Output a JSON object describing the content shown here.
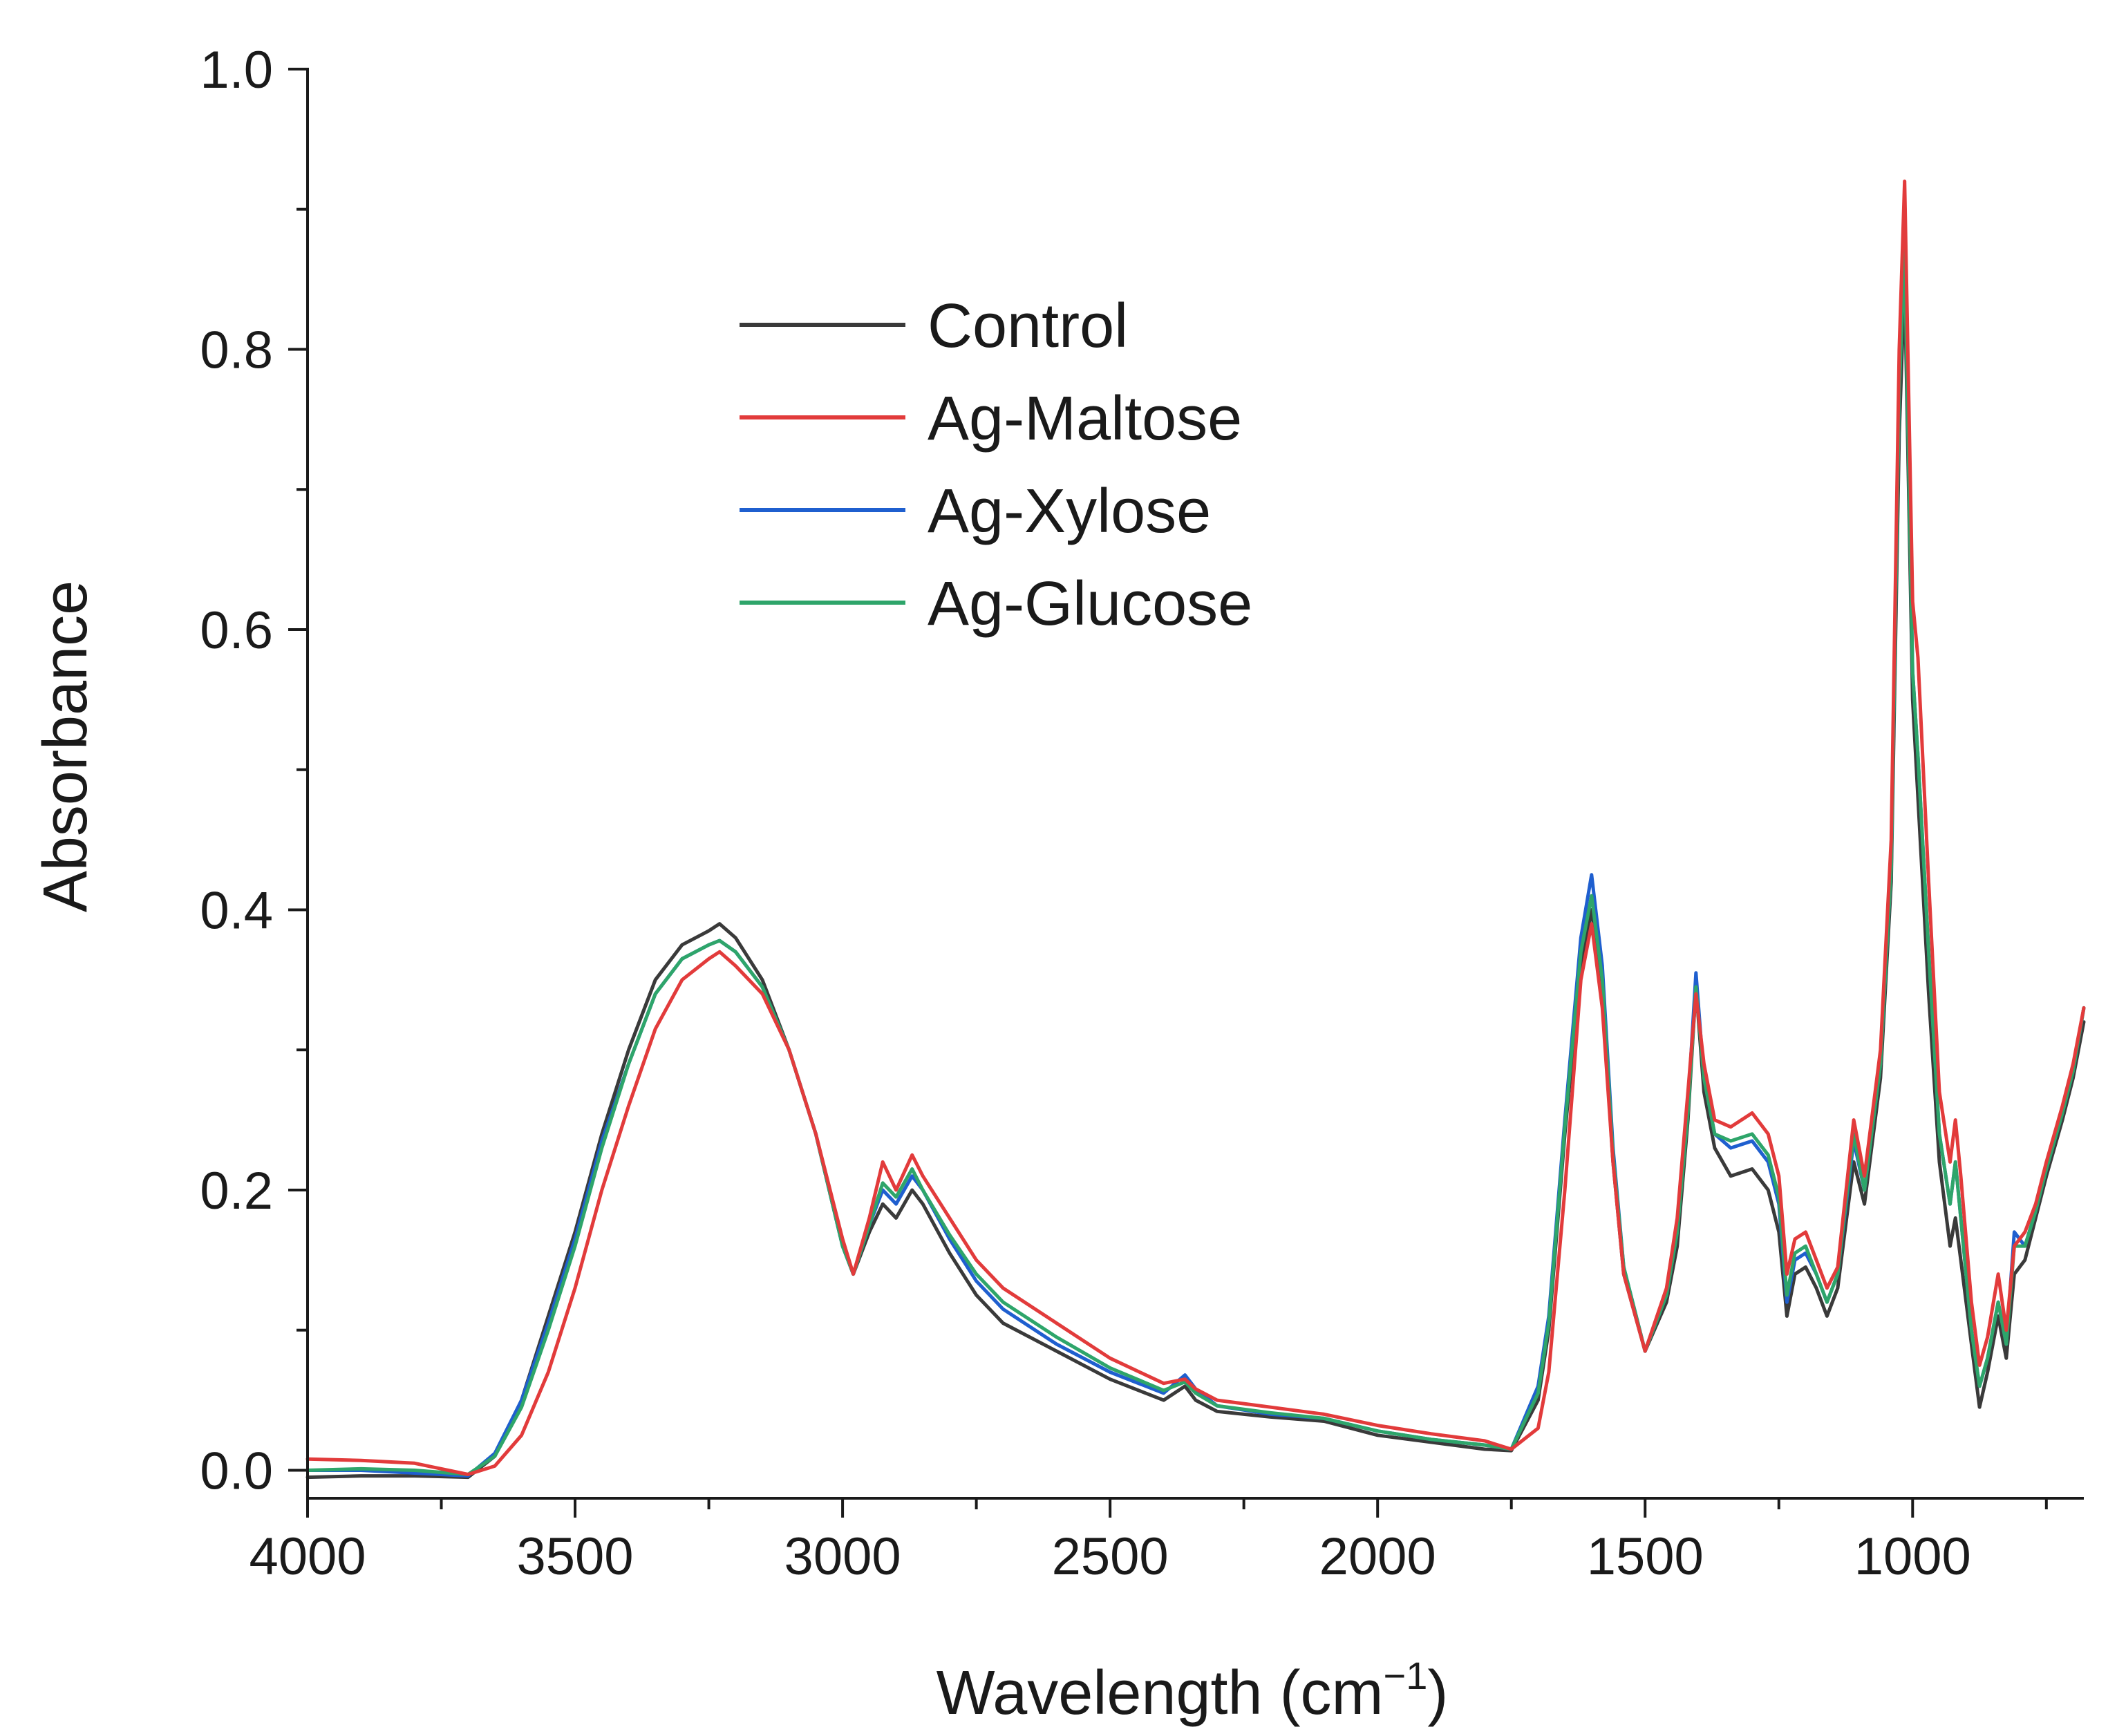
{
  "chart_data": {
    "type": "line",
    "title": "",
    "xlabel": "Wavelength (cm",
    "xlabel_superscript": "−1",
    "xlabel_suffix": ")",
    "ylabel": "Absorbance",
    "xlim": [
      4000,
      680
    ],
    "ylim": [
      -0.02,
      1.0
    ],
    "x_reversed": true,
    "grid": false,
    "legend_position": "upper-center",
    "xticks": [
      4000,
      3500,
      3000,
      2500,
      2000,
      1500,
      1000
    ],
    "xtick_labels": [
      "4000",
      "3500",
      "3000",
      "2500",
      "2000",
      "1500",
      "1000"
    ],
    "yticks": [
      0.0,
      0.2,
      0.4,
      0.6,
      0.8,
      1.0
    ],
    "ytick_labels": [
      "0.0",
      "0.2",
      "0.4",
      "0.6",
      "0.8",
      "1.0"
    ],
    "x": [
      4000,
      3900,
      3800,
      3700,
      3650,
      3600,
      3550,
      3500,
      3450,
      3400,
      3350,
      3300,
      3250,
      3230,
      3200,
      3150,
      3100,
      3050,
      3000,
      2980,
      2950,
      2925,
      2900,
      2870,
      2850,
      2800,
      2750,
      2700,
      2600,
      2500,
      2400,
      2360,
      2340,
      2300,
      2200,
      2100,
      2000,
      1900,
      1800,
      1750,
      1700,
      1680,
      1650,
      1620,
      1600,
      1580,
      1560,
      1540,
      1500,
      1460,
      1440,
      1420,
      1405,
      1390,
      1370,
      1340,
      1300,
      1270,
      1250,
      1235,
      1220,
      1200,
      1180,
      1160,
      1140,
      1110,
      1090,
      1060,
      1040,
      1025,
      1015,
      1000,
      990,
      970,
      950,
      930,
      920,
      910,
      890,
      875,
      860,
      840,
      825,
      810,
      790,
      770,
      750,
      720,
      700,
      680
    ],
    "series": [
      {
        "name": "Control",
        "color": "#3a3a3a",
        "values": [
          -0.005,
          -0.004,
          -0.004,
          -0.005,
          0.01,
          0.05,
          0.11,
          0.17,
          0.24,
          0.3,
          0.35,
          0.375,
          0.385,
          0.39,
          0.38,
          0.35,
          0.3,
          0.24,
          0.16,
          0.14,
          0.17,
          0.19,
          0.18,
          0.2,
          0.19,
          0.155,
          0.125,
          0.105,
          0.085,
          0.065,
          0.05,
          0.06,
          0.05,
          0.042,
          0.038,
          0.035,
          0.025,
          0.02,
          0.015,
          0.014,
          0.05,
          0.1,
          0.24,
          0.36,
          0.4,
          0.34,
          0.22,
          0.14,
          0.085,
          0.12,
          0.16,
          0.25,
          0.345,
          0.27,
          0.23,
          0.21,
          0.215,
          0.2,
          0.17,
          0.11,
          0.14,
          0.145,
          0.13,
          0.11,
          0.13,
          0.22,
          0.19,
          0.28,
          0.42,
          0.74,
          0.85,
          0.55,
          0.48,
          0.34,
          0.22,
          0.16,
          0.18,
          0.15,
          0.09,
          0.045,
          0.07,
          0.11,
          0.08,
          0.14,
          0.15,
          0.18,
          0.21,
          0.25,
          0.28,
          0.32
        ]
      },
      {
        "name": "Ag-Maltose",
        "color": "#e23b3b",
        "values": [
          0.008,
          0.007,
          0.005,
          -0.003,
          0.003,
          0.025,
          0.07,
          0.13,
          0.2,
          0.26,
          0.315,
          0.35,
          0.365,
          0.37,
          0.36,
          0.34,
          0.3,
          0.24,
          0.165,
          0.14,
          0.18,
          0.22,
          0.2,
          0.225,
          0.21,
          0.18,
          0.15,
          0.13,
          0.105,
          0.08,
          0.062,
          0.065,
          0.058,
          0.05,
          0.045,
          0.04,
          0.032,
          0.026,
          0.021,
          0.015,
          0.03,
          0.07,
          0.2,
          0.35,
          0.39,
          0.33,
          0.22,
          0.14,
          0.085,
          0.13,
          0.18,
          0.27,
          0.34,
          0.29,
          0.25,
          0.245,
          0.255,
          0.24,
          0.21,
          0.14,
          0.165,
          0.17,
          0.15,
          0.13,
          0.145,
          0.25,
          0.21,
          0.3,
          0.45,
          0.8,
          0.92,
          0.62,
          0.58,
          0.42,
          0.27,
          0.22,
          0.25,
          0.21,
          0.12,
          0.075,
          0.095,
          0.14,
          0.1,
          0.16,
          0.17,
          0.19,
          0.22,
          0.26,
          0.29,
          0.33
        ]
      },
      {
        "name": "Ag-Xylose",
        "color": "#1f5fcf",
        "values": [
          0.0,
          0.0,
          -0.002,
          -0.004,
          0.012,
          0.05,
          0.105,
          0.165,
          0.235,
          0.29,
          0.34,
          0.365,
          0.375,
          0.378,
          0.37,
          0.345,
          0.3,
          0.24,
          0.16,
          0.14,
          0.175,
          0.2,
          0.19,
          0.21,
          0.2,
          0.165,
          0.135,
          0.115,
          0.09,
          0.07,
          0.055,
          0.068,
          0.058,
          0.046,
          0.04,
          0.037,
          0.028,
          0.022,
          0.018,
          0.015,
          0.06,
          0.11,
          0.25,
          0.38,
          0.425,
          0.36,
          0.23,
          0.145,
          0.085,
          0.125,
          0.17,
          0.26,
          0.355,
          0.28,
          0.24,
          0.23,
          0.235,
          0.22,
          0.19,
          0.12,
          0.15,
          0.155,
          0.14,
          0.12,
          0.14,
          0.235,
          0.2,
          0.29,
          0.43,
          0.77,
          0.875,
          0.57,
          0.51,
          0.37,
          0.24,
          0.19,
          0.22,
          0.18,
          0.1,
          0.06,
          0.08,
          0.12,
          0.09,
          0.17,
          0.16,
          0.185,
          0.215,
          0.255,
          0.285,
          0.33
        ]
      },
      {
        "name": "Ag-Glucose",
        "color": "#2ea56a",
        "values": [
          0.0,
          0.001,
          0.0,
          -0.003,
          0.01,
          0.045,
          0.1,
          0.16,
          0.23,
          0.29,
          0.34,
          0.365,
          0.375,
          0.378,
          0.37,
          0.345,
          0.3,
          0.24,
          0.16,
          0.14,
          0.175,
          0.205,
          0.195,
          0.215,
          0.2,
          0.168,
          0.14,
          0.12,
          0.095,
          0.073,
          0.057,
          0.063,
          0.055,
          0.046,
          0.041,
          0.037,
          0.028,
          0.022,
          0.018,
          0.015,
          0.055,
          0.105,
          0.245,
          0.37,
          0.41,
          0.35,
          0.225,
          0.145,
          0.085,
          0.125,
          0.17,
          0.255,
          0.345,
          0.28,
          0.24,
          0.235,
          0.24,
          0.225,
          0.195,
          0.125,
          0.155,
          0.16,
          0.14,
          0.12,
          0.14,
          0.24,
          0.2,
          0.29,
          0.43,
          0.77,
          0.87,
          0.57,
          0.51,
          0.37,
          0.24,
          0.19,
          0.22,
          0.18,
          0.1,
          0.06,
          0.08,
          0.12,
          0.09,
          0.16,
          0.16,
          0.185,
          0.215,
          0.255,
          0.285,
          0.33
        ]
      }
    ]
  }
}
